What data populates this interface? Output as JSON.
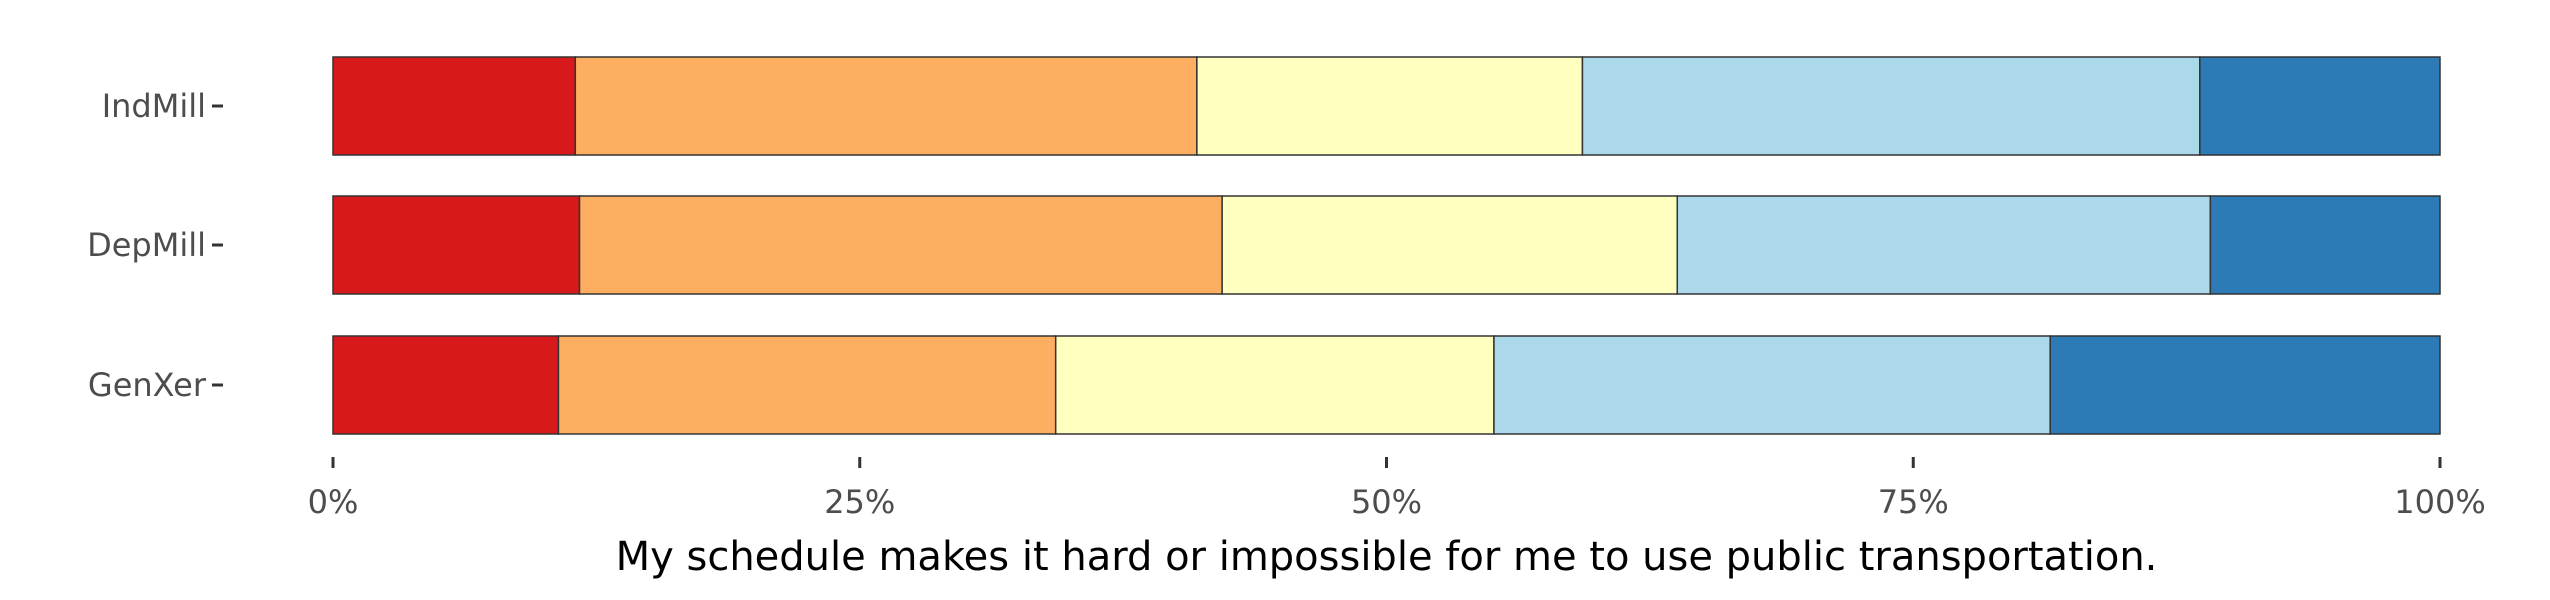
{
  "chart_data": {
    "type": "bar",
    "orientation": "horizontal",
    "stacked": true,
    "normalized": true,
    "categories": [
      "IndMill",
      "DepMill",
      "GenXer"
    ],
    "series": [
      {
        "color": "#d7191c",
        "values": [
          11.5,
          11.7,
          10.7
        ]
      },
      {
        "color": "#fdae61",
        "values": [
          29.5,
          30.5,
          23.6
        ]
      },
      {
        "color": "#ffffbf",
        "values": [
          18.3,
          21.6,
          20.8
        ]
      },
      {
        "color": "#abd9e9",
        "values": [
          29.3,
          25.3,
          26.4
        ]
      },
      {
        "color": "#2c7bb6",
        "values": [
          11.4,
          10.9,
          18.5
        ]
      }
    ],
    "xlim": [
      0,
      100
    ],
    "xticks": [
      0,
      25,
      50,
      75,
      100
    ],
    "xtick_labels": [
      "0%",
      "25%",
      "50%",
      "75%",
      "100%"
    ],
    "xlabel": "My schedule makes it hard or impossible for me to use public transportation.",
    "ylabel": "",
    "title": "",
    "grid": false,
    "legend": "none"
  }
}
